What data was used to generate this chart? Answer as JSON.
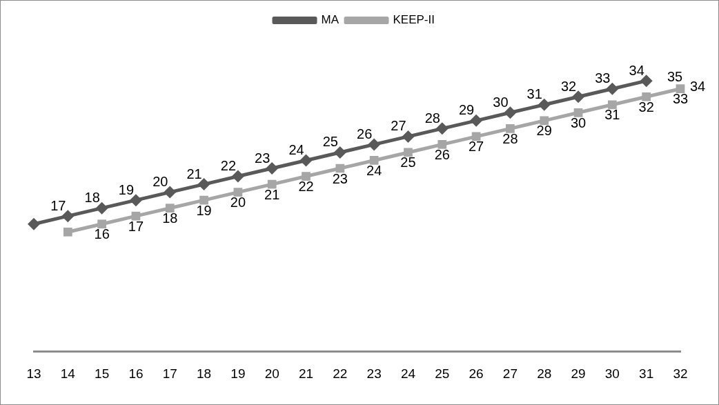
{
  "chart_data": {
    "type": "line",
    "categories": [
      "13",
      "14",
      "15",
      "16",
      "17",
      "18",
      "19",
      "20",
      "21",
      "22",
      "23",
      "24",
      "25",
      "26",
      "27",
      "28",
      "29",
      "30",
      "31",
      "32"
    ],
    "series": [
      {
        "name": "MA",
        "color": "#595959",
        "marker": "diamond",
        "values": [
          16,
          17,
          18,
          19,
          20,
          21,
          22,
          23,
          24,
          25,
          26,
          27,
          28,
          29,
          30,
          31,
          32,
          33,
          34,
          null
        ],
        "value_labels": [
          null,
          "17",
          "18",
          "19",
          "20",
          "21",
          "22",
          "23",
          "24",
          "25",
          "26",
          "27",
          "28",
          "29",
          "30",
          "31",
          "32",
          "33",
          "34",
          null
        ]
      },
      {
        "name": "KEEP-II",
        "color": "#a6a6a6",
        "marker": "square",
        "values": [
          null,
          15,
          16,
          17,
          18,
          19,
          20,
          21,
          22,
          23,
          24,
          25,
          26,
          27,
          28,
          29,
          30,
          31,
          32,
          33
        ],
        "value_labels": [
          null,
          null,
          "16",
          "17",
          "18",
          "19",
          "20",
          "21",
          "22",
          "23",
          "24",
          "25",
          "26",
          "27",
          "28",
          "29",
          "30",
          "31",
          "32",
          "33"
        ]
      }
    ],
    "annotations": [
      "35",
      "34"
    ],
    "tick_labels": "x",
    "grid": false,
    "legend": "top",
    "line_style": "solid"
  }
}
